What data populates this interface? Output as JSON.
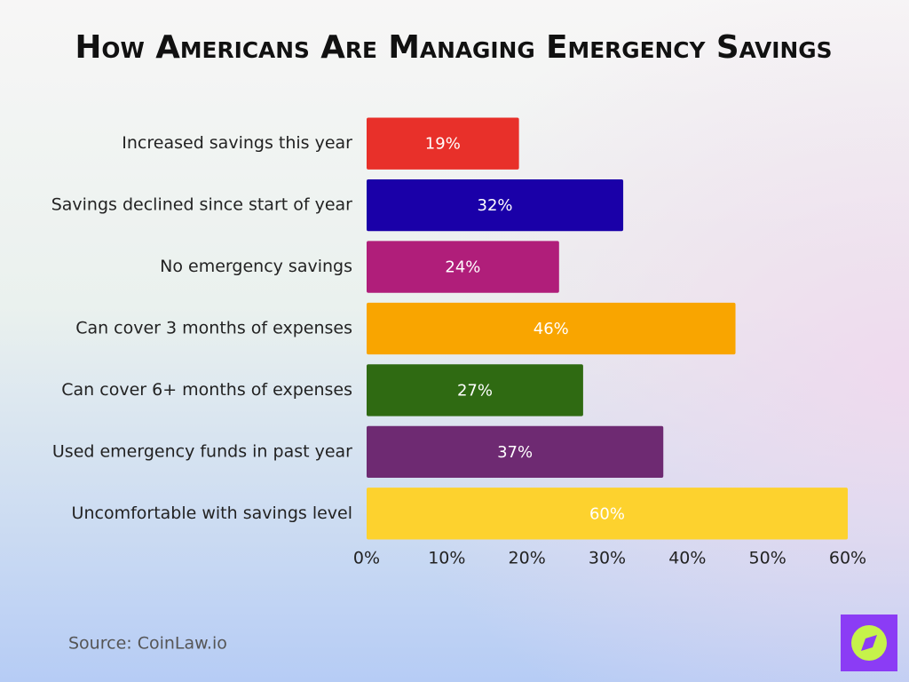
{
  "chart_data": {
    "type": "bar",
    "orientation": "horizontal",
    "title": "How Americans Are Managing Emergency Savings",
    "categories": [
      "Increased savings this year",
      "Savings declined since start of year",
      "No emergency savings",
      "Can cover 3 months of expenses",
      "Can cover 6+ months of expenses",
      "Used emergency funds in past year",
      "Uncomfortable with savings level"
    ],
    "values": [
      19,
      32,
      24,
      46,
      27,
      37,
      60
    ],
    "value_labels": [
      "19%",
      "32%",
      "24%",
      "46%",
      "27%",
      "37%",
      "60%"
    ],
    "colors": [
      "#e8302a",
      "#1a00a8",
      "#b01e7a",
      "#f9a500",
      "#2f6a12",
      "#6e2a72",
      "#fdd22e"
    ],
    "xlim": [
      0,
      60
    ],
    "xticks": [
      {
        "value": 0,
        "label": "0%"
      },
      {
        "value": 10,
        "label": "10%"
      },
      {
        "value": 20,
        "label": "20%"
      },
      {
        "value": 30,
        "label": "30%"
      },
      {
        "value": 40,
        "label": "40%"
      },
      {
        "value": 50,
        "label": "50%"
      },
      {
        "value": 60,
        "label": "60%"
      }
    ],
    "grid": false,
    "source": "Source: CoinLaw.io"
  }
}
